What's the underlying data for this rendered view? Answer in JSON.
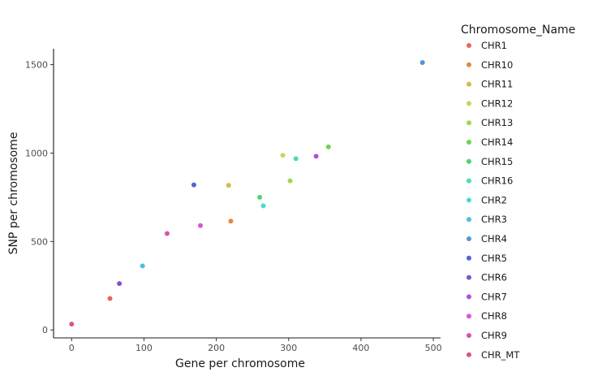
{
  "chart_data": {
    "type": "scatter",
    "xlabel": "Gene per chromosome",
    "ylabel": "SNP per chromosome",
    "xlim": [
      -25,
      510
    ],
    "ylim": [
      -45,
      1590
    ],
    "x_ticks": [
      0,
      100,
      200,
      300,
      400,
      500
    ],
    "y_ticks": [
      0,
      500,
      1000,
      1500
    ],
    "grid": false,
    "legend": {
      "title": "Chromosome_Name",
      "position": "right"
    },
    "series": [
      {
        "name": "CHR1",
        "color": "#E7665A",
        "x": 53,
        "y": 178
      },
      {
        "name": "CHR10",
        "color": "#DE8B44",
        "x": 220,
        "y": 615
      },
      {
        "name": "CHR11",
        "color": "#D9B84A",
        "x": 217,
        "y": 818
      },
      {
        "name": "CHR12",
        "color": "#C8D55A",
        "x": 292,
        "y": 987
      },
      {
        "name": "CHR13",
        "color": "#A2D74C",
        "x": 302,
        "y": 843
      },
      {
        "name": "CHR14",
        "color": "#6CD44F",
        "x": 355,
        "y": 1035
      },
      {
        "name": "CHR15",
        "color": "#50D46C",
        "x": 260,
        "y": 750
      },
      {
        "name": "CHR16",
        "color": "#4FDCA4",
        "x": 310,
        "y": 968
      },
      {
        "name": "CHR2",
        "color": "#4FD9CE",
        "x": 265,
        "y": 702
      },
      {
        "name": "CHR3",
        "color": "#4FBFE0",
        "x": 98,
        "y": 362
      },
      {
        "name": "CHR4",
        "color": "#5296D6",
        "x": 485,
        "y": 1512
      },
      {
        "name": "CHR5",
        "color": "#5762D6",
        "x": 169,
        "y": 820
      },
      {
        "name": "CHR6",
        "color": "#8254D2",
        "x": 66,
        "y": 262
      },
      {
        "name": "CHR7",
        "color": "#B04FDA",
        "x": 338,
        "y": 982
      },
      {
        "name": "CHR8",
        "color": "#DB55DC",
        "x": 178,
        "y": 590
      },
      {
        "name": "CHR9",
        "color": "#DA50B4",
        "x": 132,
        "y": 545
      },
      {
        "name": "CHR_MT",
        "color": "#DA5585",
        "x": 0,
        "y": 33
      }
    ]
  }
}
